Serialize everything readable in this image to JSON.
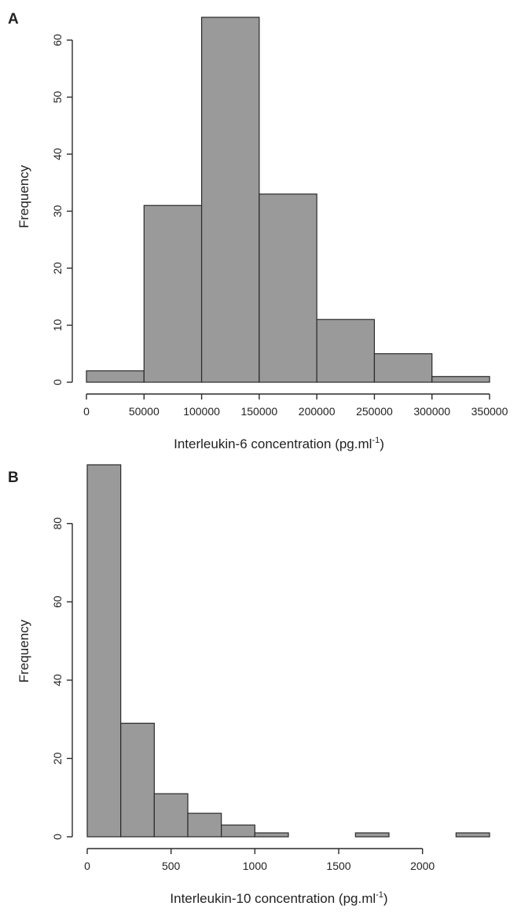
{
  "chart_data": [
    {
      "type": "bar",
      "panel": "A",
      "xlabel": "Interleukin-6 concentration (pg.ml",
      "xlabel_sup": "-1",
      "xlabel_end": ")",
      "ylabel": "Frequency",
      "bin_edges": [
        0,
        50000,
        100000,
        150000,
        200000,
        250000,
        300000,
        350000
      ],
      "values": [
        2,
        31,
        64,
        33,
        11,
        5,
        1
      ],
      "xticks": [
        0,
        50000,
        100000,
        150000,
        200000,
        250000,
        300000,
        350000
      ],
      "xtick_labels": [
        "0",
        "50000",
        "100000",
        "150000",
        "200000",
        "250000",
        "300000",
        "350000"
      ],
      "yticks": [
        0,
        10,
        20,
        30,
        40,
        50,
        60
      ],
      "ytick_labels": [
        "0",
        "10",
        "20",
        "30",
        "40",
        "50",
        "60"
      ],
      "xlim": [
        0,
        350000
      ],
      "ylim": [
        0,
        64
      ]
    },
    {
      "type": "bar",
      "panel": "B",
      "xlabel": "Interleukin-10 concentration (pg.ml",
      "xlabel_sup": "-1",
      "xlabel_end": ")",
      "ylabel": "Frequency",
      "bin_edges": [
        0,
        200,
        400,
        600,
        800,
        1000,
        1200,
        1400,
        1600,
        1800,
        2000,
        2200,
        2400
      ],
      "values": [
        95,
        29,
        11,
        6,
        3,
        1,
        0,
        0,
        1,
        0,
        0,
        1
      ],
      "xticks": [
        0,
        500,
        1000,
        1500,
        2000
      ],
      "xtick_labels": [
        "0",
        "500",
        "1000",
        "1500",
        "2000"
      ],
      "yticks": [
        0,
        20,
        40,
        60,
        80
      ],
      "ytick_labels": [
        "0",
        "20",
        "40",
        "60",
        "80"
      ],
      "xlim": [
        0,
        2400
      ],
      "ylim": [
        0,
        95
      ]
    }
  ]
}
